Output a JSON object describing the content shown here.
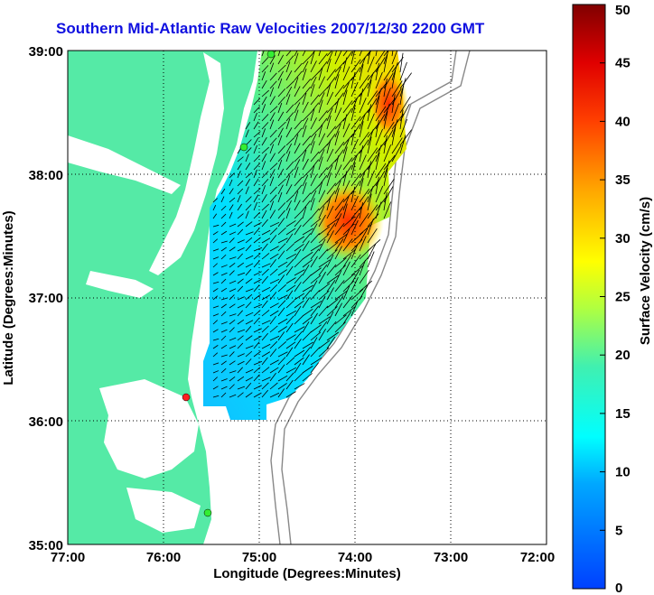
{
  "title": "Southern Mid-Atlantic Raw Velocities 2007/12/30 2200 GMT",
  "xlabel": "Longitude (Degrees:Minutes)",
  "ylabel": "Latitude (Degrees:Minutes)",
  "colorbar_label": "Surface Velocity (cm/s)",
  "x_ticks": [
    "77:00",
    "76:00",
    "75:00",
    "74:00",
    "73:00",
    "72:00"
  ],
  "y_ticks": [
    "39:00",
    "38:00",
    "37:00",
    "36:00",
    "35:00"
  ],
  "colorbar_ticks": [
    "50",
    "45",
    "40",
    "35",
    "30",
    "25",
    "20",
    "15",
    "10",
    "5",
    "0"
  ],
  "colors": {
    "land": "#55eaa6",
    "title": "#1010e0",
    "arrows": "#000000",
    "bathymetry": "#888888",
    "site_red": "#ff2020",
    "site_green": "#33ee33"
  },
  "chart_data": {
    "type": "heatmap",
    "title": "Southern Mid-Atlantic Raw Velocities 2007/12/30 2200 GMT",
    "xlabel": "Longitude (Degrees:Minutes)",
    "ylabel": "Latitude (Degrees:Minutes)",
    "xlim": [
      -77,
      -72
    ],
    "ylim": [
      35,
      39
    ],
    "colorbar_range": [
      0,
      50
    ],
    "colorbar_units": "cm/s",
    "grid": true
  }
}
